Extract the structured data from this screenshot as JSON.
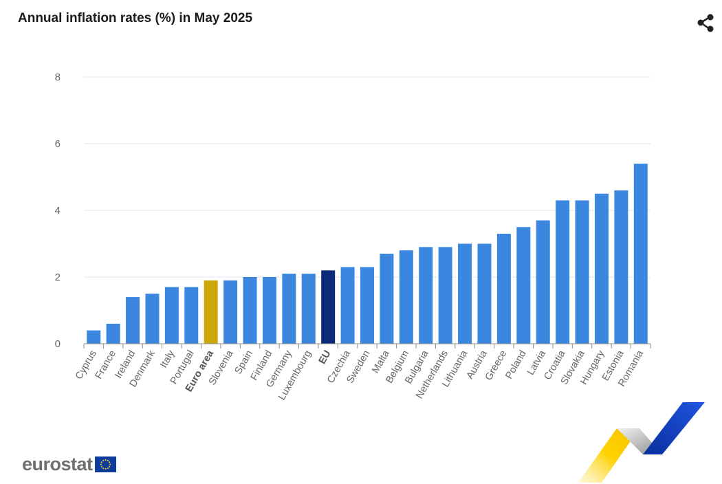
{
  "title": "Annual inflation rates (%) in May 2025",
  "logo_text": "eurostat",
  "icons": {
    "share": "share-icon",
    "flag": "eu-flag-icon",
    "ribbon": "eurostat-ribbon-decoration"
  },
  "colors": {
    "bar": "#3b87df",
    "euro_area": "#cda70a",
    "eu": "#0c2a7a",
    "grid": "#e3e6ec",
    "axis_text": "#666666"
  },
  "chart_data": {
    "type": "bar",
    "title": "Annual inflation rates (%) in May 2025",
    "xlabel": "",
    "ylabel": "",
    "ylim": [
      0,
      8
    ],
    "yticks": [
      0,
      2,
      4,
      6,
      8
    ],
    "grid": true,
    "categories": [
      "Cyprus",
      "France",
      "Ireland",
      "Denmark",
      "Italy",
      "Portugal",
      "Euro area",
      "Slovenia",
      "Spain",
      "Finland",
      "Germany",
      "Luxembourg",
      "EU",
      "Czechia",
      "Sweden",
      "Malta",
      "Belgium",
      "Bulgaria",
      "Netherlands",
      "Lithuania",
      "Austria",
      "Greece",
      "Poland",
      "Latvia",
      "Croatia",
      "Slovakia",
      "Hungary",
      "Estonia",
      "Romania"
    ],
    "values": [
      0.4,
      0.6,
      1.4,
      1.5,
      1.7,
      1.7,
      1.9,
      1.9,
      2.0,
      2.0,
      2.1,
      2.1,
      2.2,
      2.3,
      2.3,
      2.7,
      2.8,
      2.9,
      2.9,
      3.0,
      3.0,
      3.3,
      3.5,
      3.7,
      4.3,
      4.3,
      4.5,
      4.6,
      5.4
    ],
    "highlight": {
      "Euro area": "#cda70a",
      "EU": "#0c2a7a"
    }
  }
}
